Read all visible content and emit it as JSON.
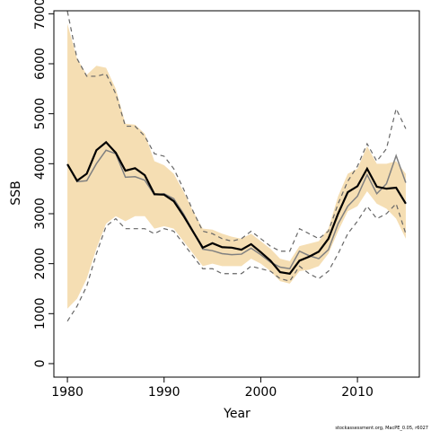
{
  "chart_data": {
    "type": "line",
    "x_label": "Year",
    "y_label": "SSB",
    "footnote": "stockassessment.org, MacPE_0.05, r6027",
    "x": [
      1980,
      1981,
      1982,
      1983,
      1984,
      1985,
      1986,
      1987,
      1988,
      1989,
      1990,
      1991,
      1992,
      1993,
      1994,
      1995,
      1996,
      1997,
      1998,
      1999,
      2000,
      2001,
      2002,
      2003,
      2004,
      2005,
      2006,
      2007,
      2008,
      2009,
      2010,
      2011,
      2012,
      2013,
      2014,
      2015
    ],
    "band": {
      "color": "#f5deb3",
      "upper": [
        6800,
        6100,
        5780,
        5960,
        5920,
        5500,
        4800,
        4780,
        4600,
        4050,
        3970,
        3800,
        3450,
        3050,
        2700,
        2680,
        2600,
        2540,
        2500,
        2600,
        2450,
        2300,
        2100,
        2050,
        2350,
        2400,
        2450,
        2700,
        3350,
        3800,
        3900,
        4350,
        4000,
        4000,
        4050,
        3800
      ],
      "lower": [
        1100,
        1300,
        1700,
        2300,
        2800,
        2950,
        2850,
        2950,
        2950,
        2700,
        2750,
        2700,
        2450,
        2200,
        1950,
        2000,
        1950,
        1950,
        1950,
        2100,
        2000,
        1850,
        1650,
        1600,
        1850,
        1880,
        1950,
        2200,
        2650,
        3050,
        3150,
        3450,
        3200,
        3100,
        2900,
        2500
      ]
    },
    "series": [
      {
        "color": "#666666",
        "width": 1.2,
        "dashed": true,
        "values": [
          7050,
          6100,
          5750,
          5750,
          5800,
          5400,
          4750,
          4750,
          4550,
          4200,
          4150,
          3900,
          3500,
          3050,
          2650,
          2600,
          2500,
          2450,
          2500,
          2650,
          2500,
          2350,
          2250,
          2250,
          2700,
          2600,
          2500,
          2650,
          3200,
          3650,
          3950,
          4400,
          4050,
          4300,
          5100,
          4700
        ]
      },
      {
        "color": "#666666",
        "width": 1.2,
        "dashed": true,
        "values": [
          850,
          1150,
          1550,
          2200,
          2750,
          2900,
          2700,
          2700,
          2700,
          2600,
          2700,
          2650,
          2400,
          2150,
          1900,
          1900,
          1800,
          1800,
          1800,
          1950,
          1900,
          1850,
          1700,
          1650,
          1950,
          1800,
          1700,
          1850,
          2200,
          2600,
          2850,
          3150,
          2900,
          3000,
          3200,
          2600
        ]
      },
      {
        "color": "#808080",
        "width": 1.5,
        "dashed": false,
        "values": [
          3990,
          3640,
          3660,
          4000,
          4270,
          4200,
          3730,
          3740,
          3670,
          3380,
          3400,
          3300,
          3000,
          2650,
          2290,
          2260,
          2200,
          2180,
          2190,
          2310,
          2180,
          2030,
          1930,
          1900,
          2250,
          2160,
          2100,
          2280,
          2800,
          3150,
          3350,
          3780,
          3400,
          3600,
          4160,
          3620
        ]
      },
      {
        "color": "#000000",
        "width": 2.2,
        "dashed": false,
        "values": [
          3990,
          3660,
          3800,
          4270,
          4430,
          4220,
          3860,
          3910,
          3770,
          3390,
          3380,
          3250,
          2960,
          2640,
          2320,
          2410,
          2330,
          2320,
          2280,
          2390,
          2230,
          2060,
          1830,
          1800,
          2060,
          2140,
          2240,
          2500,
          3000,
          3430,
          3550,
          3900,
          3540,
          3500,
          3520,
          3200
        ]
      }
    ],
    "xlim": [
      1978.6,
      2016.4
    ],
    "xticks": [
      1980,
      1990,
      2000,
      2010
    ],
    "ylim": [
      -270,
      7060
    ],
    "yticks": [
      0,
      1000,
      2000,
      3000,
      4000,
      5000,
      6000,
      7000
    ]
  }
}
